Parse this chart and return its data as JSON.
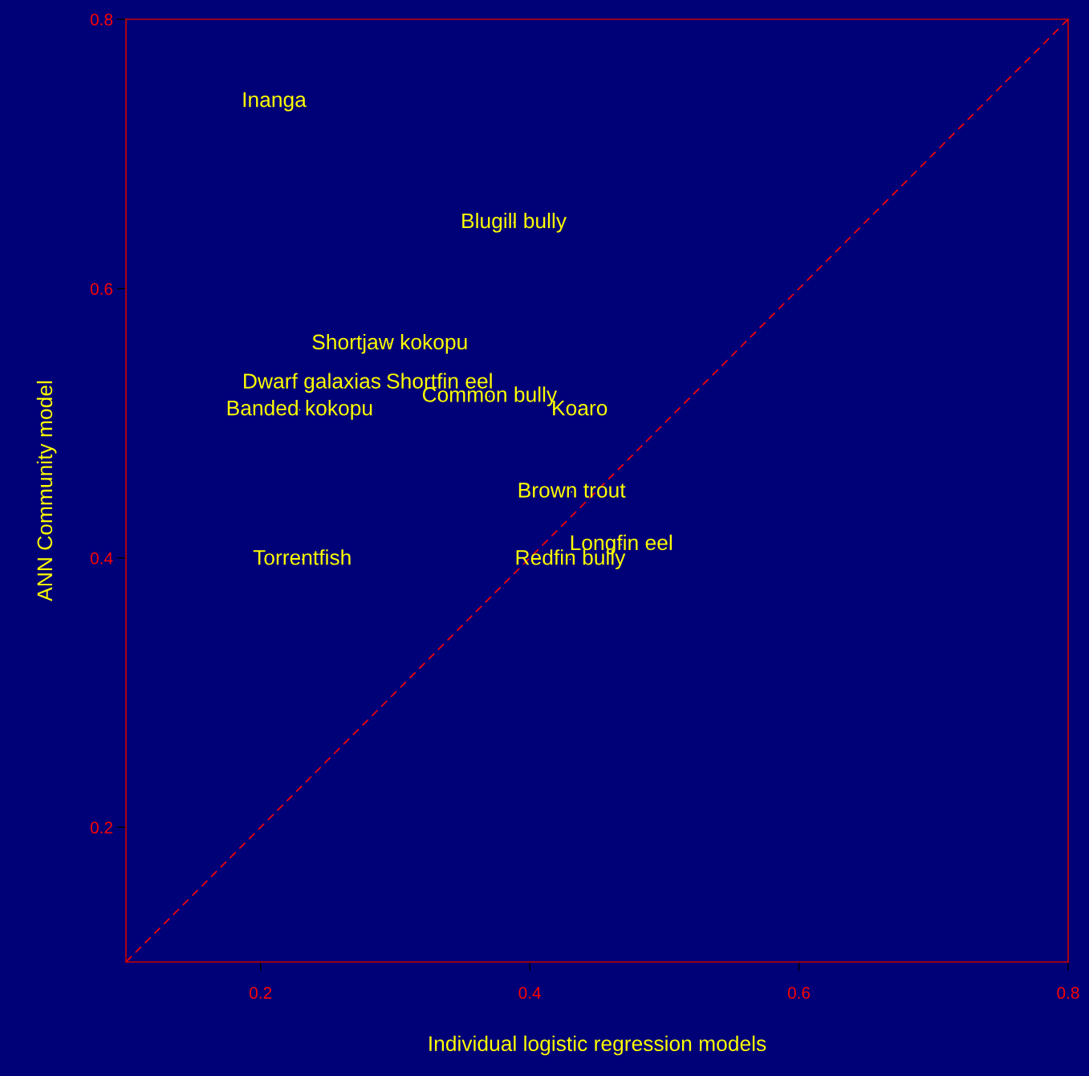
{
  "chart_data": {
    "type": "scatter",
    "xlabel": "Individual logistic regression models",
    "ylabel": "ANN Community model",
    "xlim": [
      0.1,
      0.8
    ],
    "ylim": [
      0.1,
      0.8
    ],
    "xticks": [
      0.2,
      0.4,
      0.6,
      0.8
    ],
    "yticks": [
      0.2,
      0.4,
      0.6,
      0.8
    ],
    "grid": false,
    "legend": false,
    "marker": "none",
    "series": [
      {
        "type": "scatter",
        "color": "#ffff00",
        "x": [
          0.21,
          0.388,
          0.296,
          0.238,
          0.333,
          0.37,
          0.229,
          0.437,
          0.431,
          0.468,
          0.43,
          0.231
        ],
        "values": [
          0.739,
          0.649,
          0.559,
          0.53,
          0.53,
          0.52,
          0.51,
          0.51,
          0.449,
          0.41,
          0.399,
          0.399
        ],
        "value_labels": [
          "Inanga",
          "Blugill bully",
          "Shortjaw kokopu",
          "Dwarf galaxias",
          "Shortfin eel",
          "Common bully",
          "Banded kokopu",
          "Koaro",
          "Brown trout",
          "Longfin eel",
          "Redfin bully",
          "Torrentfish"
        ]
      },
      {
        "type": "line",
        "color": "#ff0000",
        "line_style": "dashed",
        "x": [
          0.1,
          0.8
        ],
        "values": [
          0.1,
          0.8
        ]
      }
    ]
  }
}
